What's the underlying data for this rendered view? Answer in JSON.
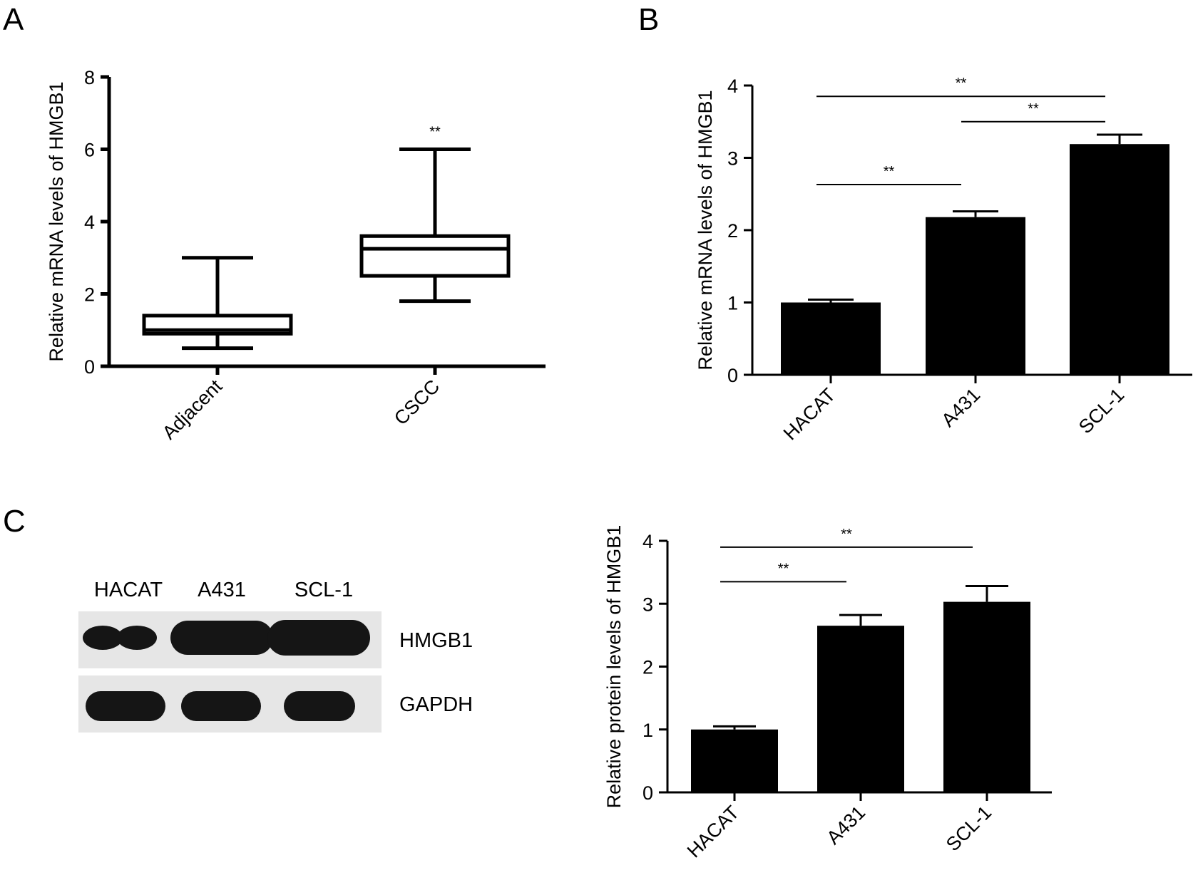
{
  "panels": {
    "A": "A",
    "B": "B",
    "C": "C"
  },
  "western_blot": {
    "lanes": [
      "HACAT",
      "A431",
      "SCL-1"
    ],
    "rows": [
      "HMGB1",
      "GAPDH"
    ],
    "band_color": "#151515"
  },
  "chart_data": [
    {
      "id": "A",
      "type": "box",
      "categories": [
        "Adjacent",
        "CSCC"
      ],
      "boxes": [
        {
          "min": 0.5,
          "q1": 0.9,
          "median": 1.0,
          "q3": 1.4,
          "max": 3.0
        },
        {
          "min": 1.8,
          "q1": 2.5,
          "median": 3.25,
          "q3": 3.6,
          "max": 6.0
        }
      ],
      "significance": [
        "",
        "**"
      ],
      "ylabel": "Relative mRNA levels of HMGB1",
      "ylim": [
        0,
        8
      ],
      "yticks": [
        0,
        2,
        4,
        6,
        8
      ]
    },
    {
      "id": "B",
      "type": "bar",
      "categories": [
        "HACAT",
        "A431",
        "SCL-1"
      ],
      "values": [
        1.0,
        2.18,
        3.19
      ],
      "errors": [
        0.04,
        0.08,
        0.13
      ],
      "comparisons": [
        {
          "from": 0,
          "to": 2,
          "y": 3.85,
          "label": "**"
        },
        {
          "from": 1,
          "to": 2,
          "y": 3.5,
          "label": "**"
        },
        {
          "from": 0,
          "to": 1,
          "y": 2.63,
          "label": "**"
        }
      ],
      "ylabel": "Relative mRNA levels of HMGB1",
      "ylim": [
        0,
        4
      ],
      "yticks": [
        0,
        1,
        2,
        3,
        4
      ]
    },
    {
      "id": "C",
      "type": "bar",
      "categories": [
        "HACAT",
        "A431",
        "SCL-1"
      ],
      "values": [
        1.0,
        2.65,
        3.03
      ],
      "errors": [
        0.05,
        0.17,
        0.25
      ],
      "comparisons": [
        {
          "from": 0,
          "to": 2,
          "y": 3.9,
          "label": "**"
        },
        {
          "from": 0,
          "to": 1,
          "y": 3.35,
          "label": "**"
        }
      ],
      "ylabel": "Relative protein levels of HMGB1",
      "ylim": [
        0,
        4
      ],
      "yticks": [
        0,
        1,
        2,
        3,
        4
      ]
    }
  ]
}
